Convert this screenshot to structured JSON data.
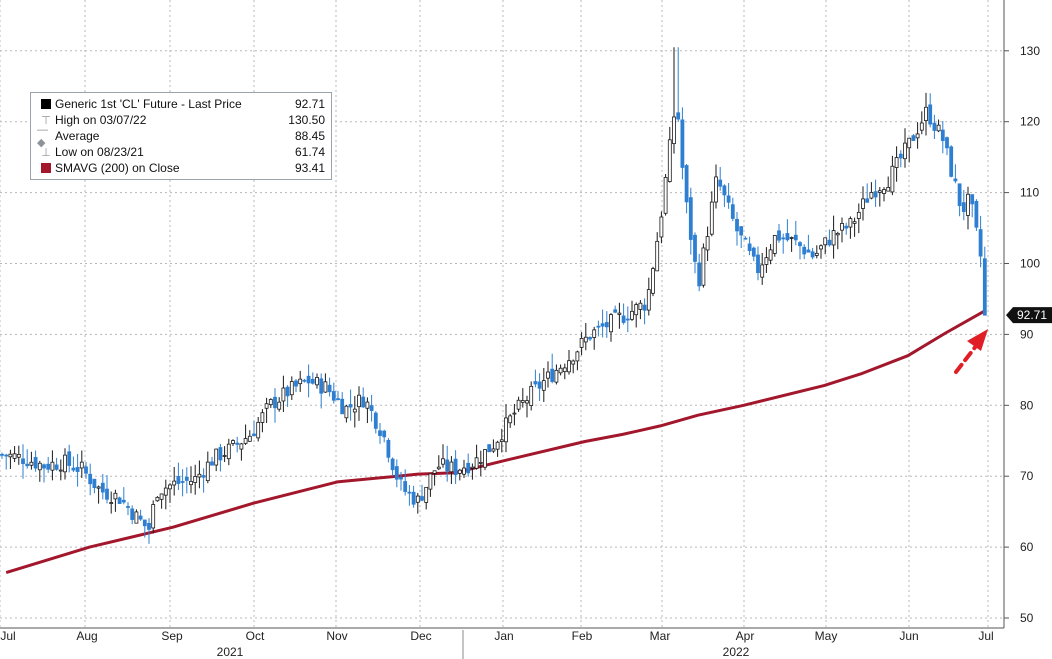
{
  "legend": {
    "items": [
      {
        "label": "Generic 1st 'CL' Future - Last Price",
        "value": "92.71"
      },
      {
        "label": "High on 03/07/22",
        "value": "130.50"
      },
      {
        "label": "Average",
        "value": "88.45"
      },
      {
        "label": "Low on 08/23/21",
        "value": "61.74"
      },
      {
        "label": "SMAVG (200)  on Close",
        "value": "93.41"
      }
    ]
  },
  "last_price_tag": "92.71",
  "colors": {
    "price_up": "#1a1a1a",
    "price_down": "#2e7fd1",
    "sma": "#a3172c",
    "arrow": "#e01e25",
    "grid": "#b8b8b8"
  },
  "chart_data": {
    "type": "line",
    "y_axis": {
      "side": "right",
      "ylim": [
        49,
        135
      ],
      "ticks": [
        50,
        60,
        70,
        80,
        90,
        100,
        110,
        120,
        130
      ]
    },
    "x_axis": {
      "month_labels": [
        "Jul",
        "Aug",
        "Sep",
        "Oct",
        "Nov",
        "Dec",
        "Jan",
        "Feb",
        "Mar",
        "Apr",
        "May",
        "Jun",
        "Jul"
      ],
      "year_labels": [
        "2021",
        "2022"
      ]
    },
    "grid": true,
    "series": [
      {
        "name": "Generic 1st 'CL' Future - Last Price",
        "style": "candlestick",
        "x": [
          "2021-07-01",
          "2021-07-08",
          "2021-07-15",
          "2021-07-22",
          "2021-07-29",
          "2021-08-05",
          "2021-08-12",
          "2021-08-19",
          "2021-08-23",
          "2021-08-26",
          "2021-09-02",
          "2021-09-09",
          "2021-09-16",
          "2021-09-23",
          "2021-09-30",
          "2021-10-07",
          "2021-10-14",
          "2021-10-21",
          "2021-10-28",
          "2021-11-04",
          "2021-11-11",
          "2021-11-18",
          "2021-11-24",
          "2021-11-26",
          "2021-12-01",
          "2021-12-08",
          "2021-12-15",
          "2021-12-22",
          "2021-12-29",
          "2022-01-06",
          "2022-01-13",
          "2022-01-20",
          "2022-01-27",
          "2022-02-03",
          "2022-02-10",
          "2022-02-17",
          "2022-02-24",
          "2022-03-01",
          "2022-03-07",
          "2022-03-10",
          "2022-03-15",
          "2022-03-22",
          "2022-03-29",
          "2022-04-06",
          "2022-04-13",
          "2022-04-20",
          "2022-04-27",
          "2022-05-04",
          "2022-05-11",
          "2022-05-18",
          "2022-05-25",
          "2022-06-01",
          "2022-06-08",
          "2022-06-14",
          "2022-06-21",
          "2022-06-24",
          "2022-06-28",
          "2022-06-30"
        ],
        "values": [
          73.0,
          72.5,
          71.5,
          72.0,
          71.0,
          68.0,
          67.0,
          64.0,
          62.5,
          68.0,
          69.0,
          69.5,
          72.5,
          74.0,
          76.0,
          80.0,
          82.0,
          83.5,
          82.5,
          79.5,
          81.0,
          76.0,
          69.0,
          68.0,
          66.5,
          71.5,
          71.0,
          72.0,
          74.5,
          79.0,
          82.0,
          84.5,
          87.0,
          90.0,
          91.5,
          93.0,
          94.5,
          106.0,
          123.5,
          110.0,
          97.0,
          112.0,
          105.0,
          99.0,
          104.0,
          103.0,
          101.0,
          104.0,
          105.5,
          110.0,
          112.0,
          116.5,
          121.5,
          117.5,
          107.5,
          109.0,
          101.0,
          92.71
        ]
      },
      {
        "name": "SMAVG (200)  on Close",
        "style": "line",
        "x": [
          "2021-07-01",
          "2021-08-01",
          "2021-09-01",
          "2021-10-01",
          "2021-11-01",
          "2021-11-26",
          "2021-12-01",
          "2021-12-15",
          "2022-01-01",
          "2022-02-01",
          "2022-02-15",
          "2022-03-01",
          "2022-03-15",
          "2022-04-01",
          "2022-05-01",
          "2022-05-15",
          "2022-06-01",
          "2022-06-15",
          "2022-06-30"
        ],
        "values": [
          56.4,
          60.0,
          62.8,
          66.2,
          69.2,
          70.1,
          70.3,
          70.5,
          72.1,
          74.9,
          75.9,
          77.1,
          78.6,
          80.0,
          82.8,
          84.5,
          87.0,
          90.2,
          93.41
        ]
      }
    ],
    "annotations": [
      {
        "type": "high",
        "label": "High on 03/07/22",
        "x": "2022-03-07",
        "value": 130.5
      },
      {
        "type": "average",
        "label": "Average",
        "value": 88.45
      },
      {
        "type": "low",
        "label": "Low on 08/23/21",
        "x": "2021-08-23",
        "value": 61.74
      },
      {
        "type": "arrow",
        "points_to": "2022-06-30",
        "value": 92.71
      }
    ]
  }
}
